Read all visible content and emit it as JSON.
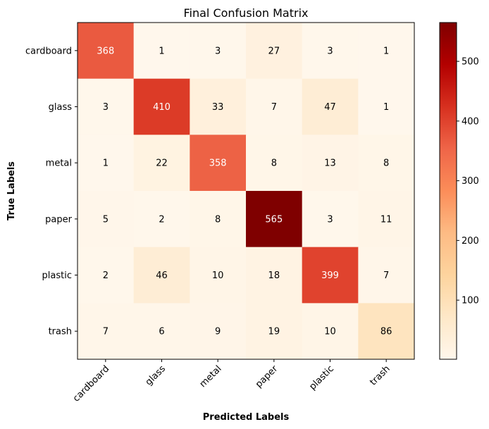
{
  "chart_data": {
    "type": "heatmap",
    "title": "Final Confusion Matrix",
    "xlabel": "Predicted Labels",
    "ylabel": "True Labels",
    "x_categories": [
      "cardboard",
      "glass",
      "metal",
      "paper",
      "plastic",
      "trash"
    ],
    "y_categories": [
      "cardboard",
      "glass",
      "metal",
      "paper",
      "plastic",
      "trash"
    ],
    "values": [
      [
        368,
        1,
        3,
        27,
        3,
        1
      ],
      [
        3,
        410,
        33,
        7,
        47,
        1
      ],
      [
        1,
        22,
        358,
        8,
        13,
        8
      ],
      [
        5,
        2,
        8,
        565,
        3,
        11
      ],
      [
        2,
        46,
        10,
        18,
        399,
        7
      ],
      [
        7,
        6,
        9,
        19,
        10,
        86
      ]
    ],
    "colormap": "OrRd",
    "colorbar": {
      "range": [
        1,
        565
      ],
      "ticks": [
        100,
        200,
        300,
        400,
        500
      ]
    },
    "grid": false,
    "tick_rotation_x": 45
  }
}
